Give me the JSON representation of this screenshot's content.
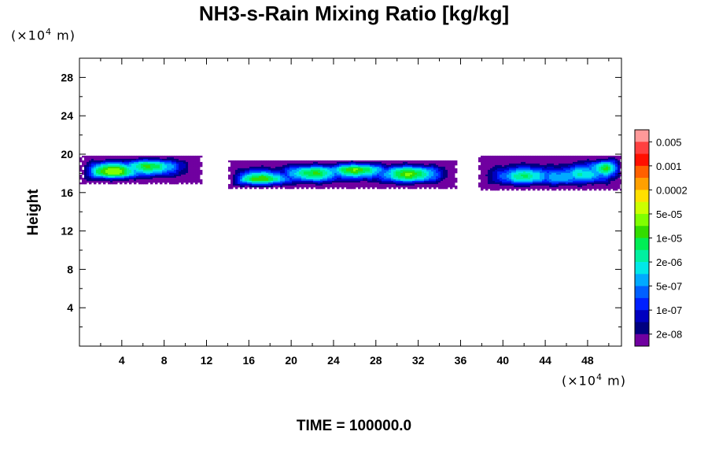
{
  "chart_data": {
    "type": "heatmap",
    "title": "NH3-s-Rain Mixing Ratio [kg/kg]",
    "ylabel": "Height",
    "x_unit": {
      "prefix": "(×10",
      "exp": "4",
      "suffix": " m)"
    },
    "y_unit": {
      "prefix": "(×10",
      "exp": "4",
      "suffix": " m)"
    },
    "footer": "TIME = 100000.0",
    "xlim": [
      0,
      51.2
    ],
    "ylim": [
      0,
      30
    ],
    "x_ticks": [
      "4",
      "8",
      "12",
      "16",
      "20",
      "24",
      "28",
      "32",
      "36",
      "40",
      "44",
      "48"
    ],
    "y_ticks": [
      "4",
      "8",
      "12",
      "16",
      "20",
      "24",
      "28"
    ],
    "colorbar": {
      "labels": [
        "0.005",
        "0.001",
        "0.0002",
        "5e-05",
        "1e-05",
        "2e-06",
        "5e-07",
        "1e-07",
        "2e-08"
      ],
      "colors_top_to_bottom": [
        "#ff9999",
        "#ff4040",
        "#ff1000",
        "#ff6000",
        "#ffa000",
        "#ffe000",
        "#ccff00",
        "#80ff00",
        "#33dd00",
        "#00ee55",
        "#00f0a0",
        "#00e8e8",
        "#00aaff",
        "#0060ff",
        "#0020ff",
        "#0000c0",
        "#000080",
        "#7000a0"
      ]
    },
    "field_regions": [
      {
        "x0": 0,
        "x1": 11.5,
        "y0": 17.0,
        "y1": 20.0
      },
      {
        "x0": 14.0,
        "x1": 35.5,
        "y0": 16.5,
        "y1": 19.5
      },
      {
        "x0": 37.5,
        "x1": 51.2,
        "y0": 16.3,
        "y1": 20.0
      }
    ],
    "cores": [
      {
        "x": 3,
        "y": 18.3,
        "level": 11
      },
      {
        "x": 6.5,
        "y": 18.8,
        "level": 9
      },
      {
        "x": 17,
        "y": 17.4,
        "level": 10
      },
      {
        "x": 22,
        "y": 18.1,
        "level": 9
      },
      {
        "x": 26,
        "y": 18.5,
        "level": 10
      },
      {
        "x": 31,
        "y": 18.0,
        "level": 10
      },
      {
        "x": 42,
        "y": 17.8,
        "level": 8
      },
      {
        "x": 45.5,
        "y": 17.7,
        "level": 6
      },
      {
        "x": 47.5,
        "y": 18.0,
        "level": 7
      },
      {
        "x": 50.5,
        "y": 18.6,
        "level": 10
      }
    ]
  }
}
